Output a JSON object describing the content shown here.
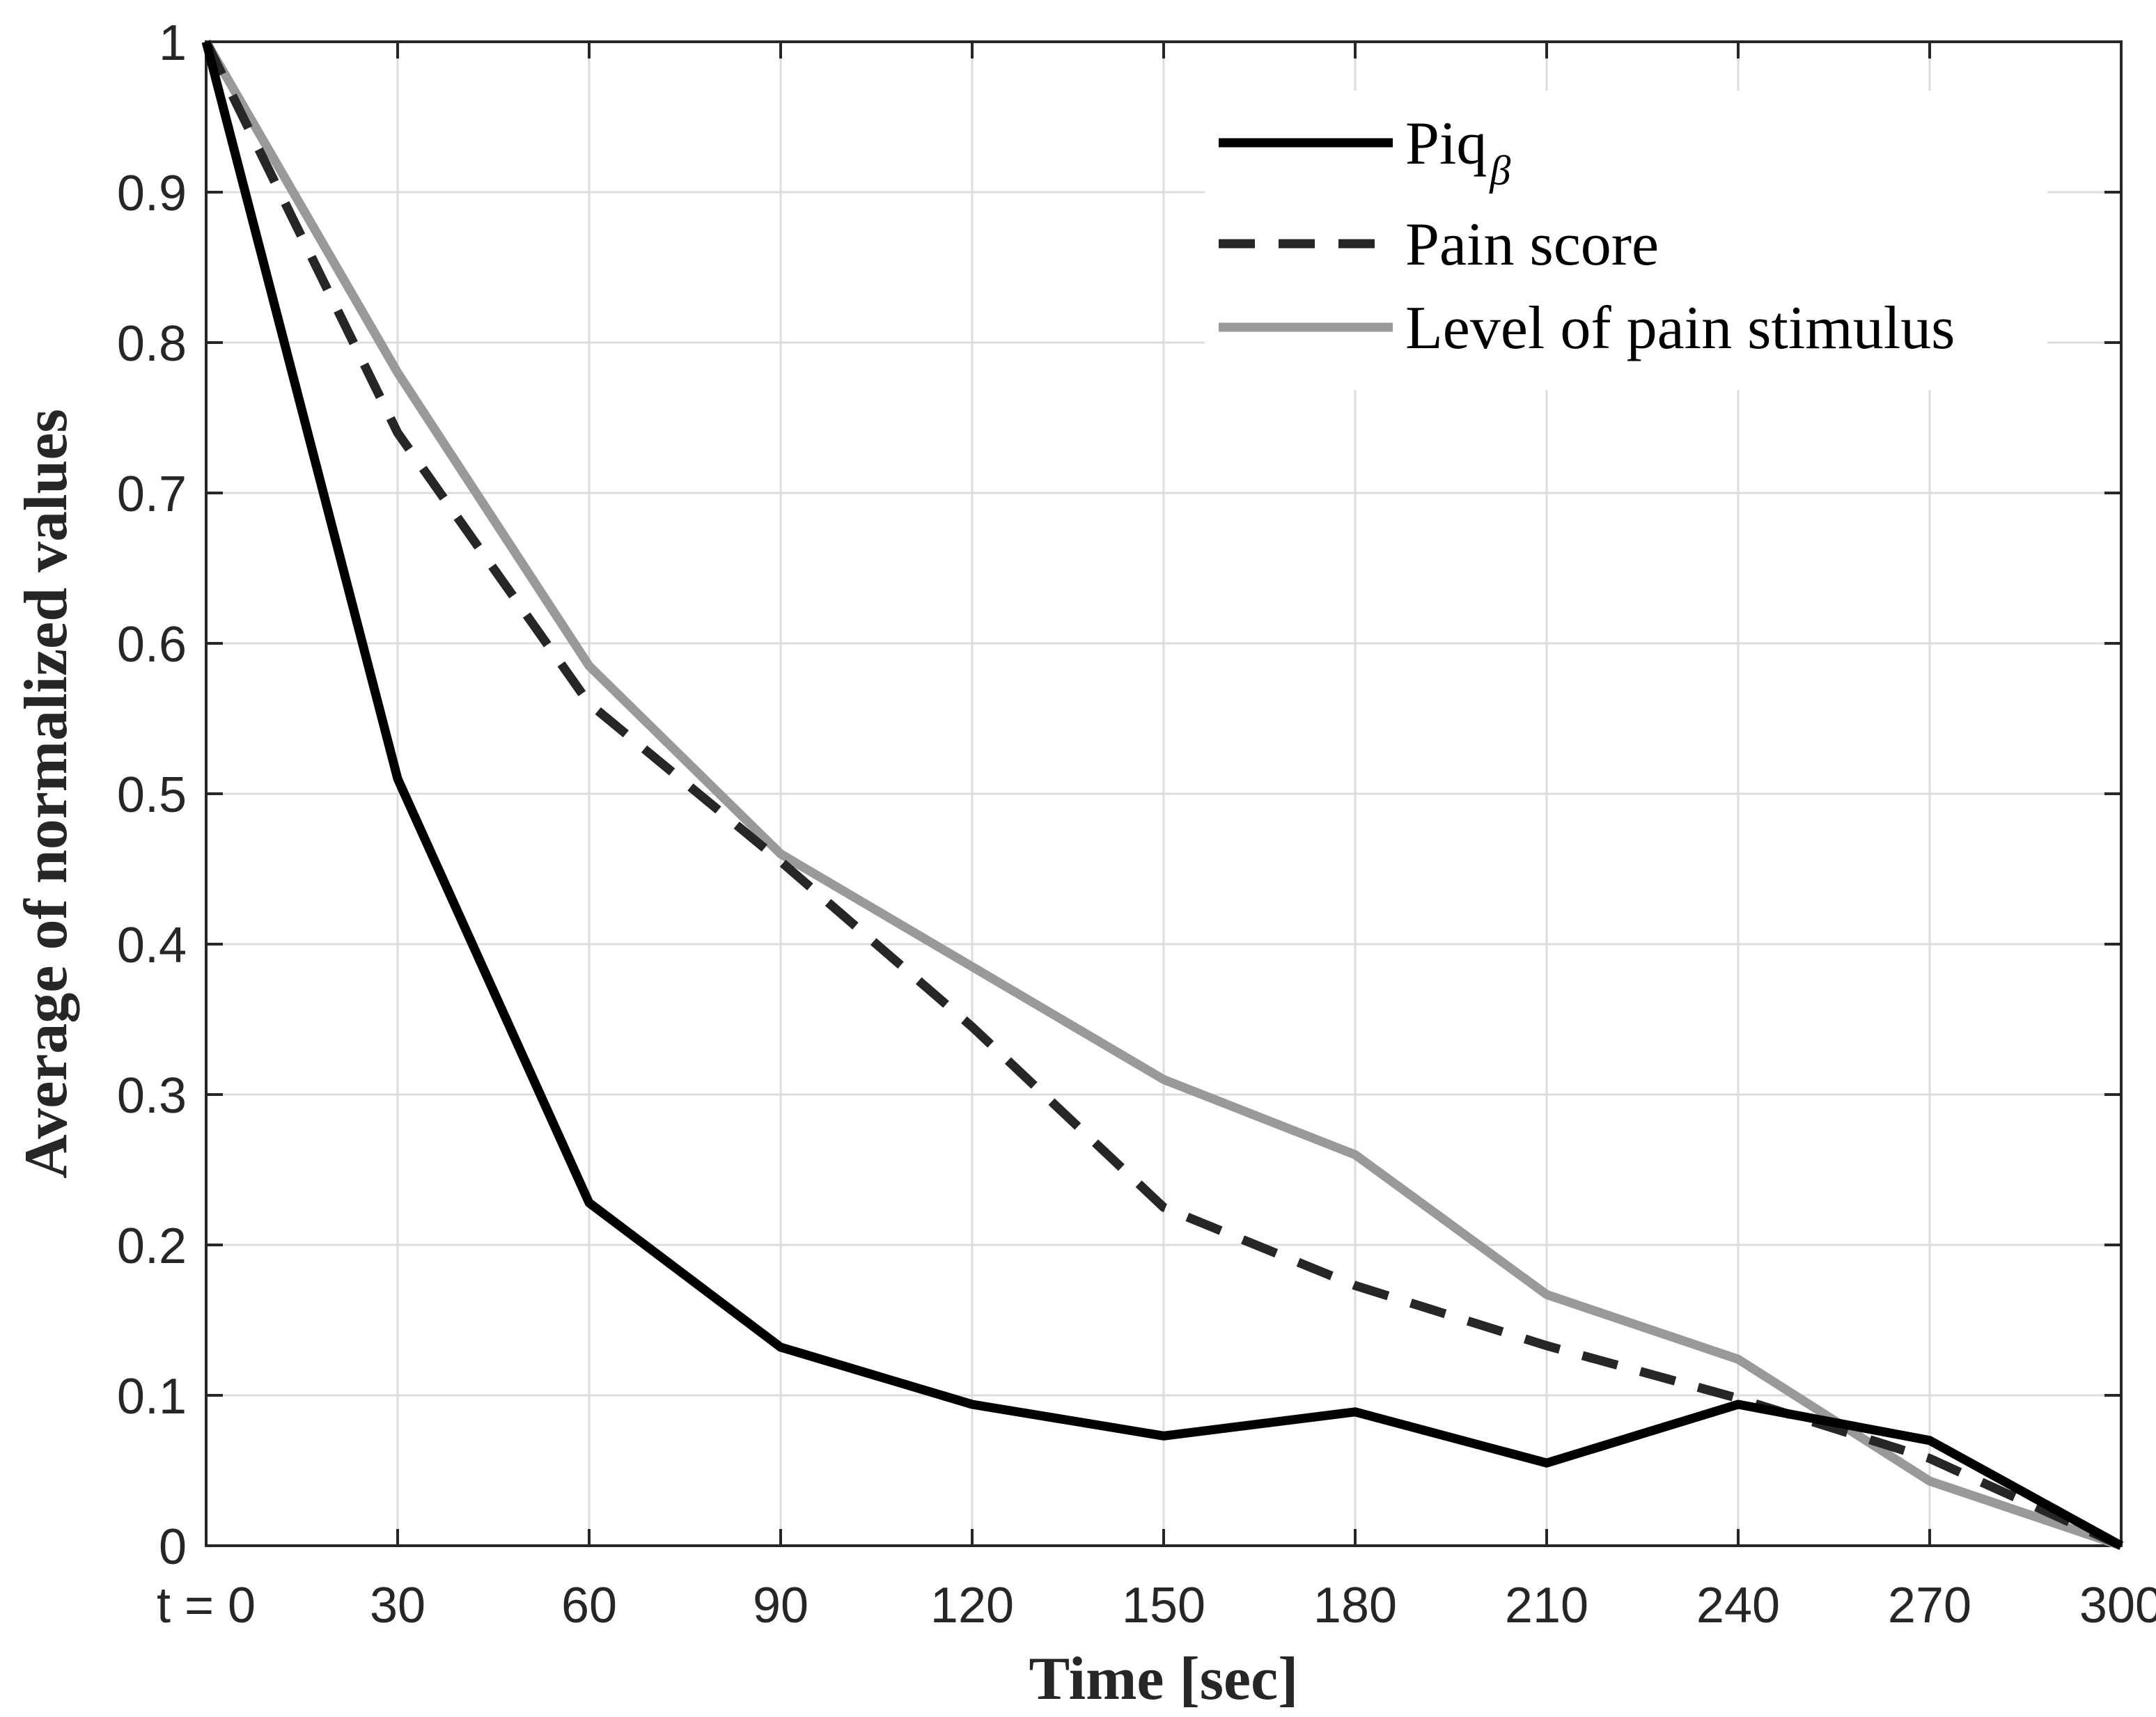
{
  "chart_data": {
    "type": "line",
    "title": "",
    "xlabel": "Time [sec]",
    "ylabel": "Average of normalized values",
    "x": [
      0,
      30,
      60,
      90,
      120,
      150,
      180,
      210,
      240,
      270,
      300
    ],
    "x_tick_labels": [
      "t = 0",
      "30",
      "60",
      "90",
      "120",
      "150",
      "180",
      "210",
      "240",
      "270",
      "300"
    ],
    "y_tick_labels": [
      "0",
      "0.1",
      "0.2",
      "0.3",
      "0.4",
      "0.5",
      "0.6",
      "0.7",
      "0.8",
      "0.9",
      "1"
    ],
    "xlim": [
      0,
      300
    ],
    "ylim": [
      0,
      1
    ],
    "grid": true,
    "legend_position": "top-right",
    "series": [
      {
        "name": "Piq",
        "subscript": "β",
        "color": "#000000",
        "style": "solid",
        "values": [
          1.0,
          0.51,
          0.228,
          0.132,
          0.094,
          0.073,
          0.089,
          0.055,
          0.094,
          0.07,
          0.0
        ]
      },
      {
        "name": "Pain score",
        "subscript": "",
        "color": "#262626",
        "style": "dashed",
        "values": [
          1.0,
          0.74,
          0.56,
          0.455,
          0.345,
          0.225,
          0.173,
          0.133,
          0.098,
          0.058,
          0.0
        ]
      },
      {
        "name": "Level of pain stimulus",
        "subscript": "",
        "color": "#999999",
        "style": "solid",
        "values": [
          1.0,
          0.78,
          0.585,
          0.46,
          0.385,
          0.31,
          0.26,
          0.167,
          0.124,
          0.043,
          0.0
        ]
      }
    ]
  }
}
